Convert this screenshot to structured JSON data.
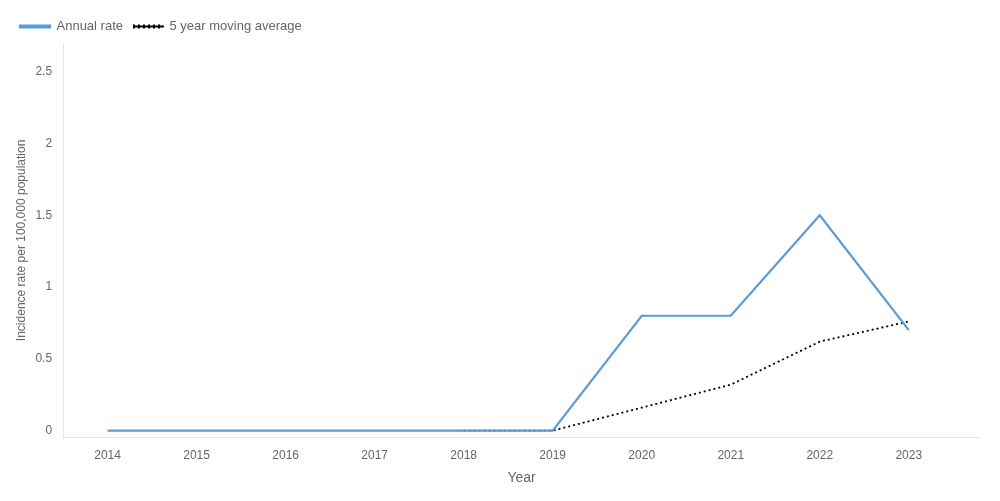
{
  "chart_data": {
    "type": "line",
    "x": [
      2014,
      2015,
      2016,
      2017,
      2018,
      2019,
      2020,
      2021,
      2022,
      2023
    ],
    "series": [
      {
        "name": "Annual rate",
        "color": "#5B9BD5",
        "line_style": "solid",
        "values": [
          0.0,
          0.0,
          0.0,
          0.0,
          0.0,
          0.0,
          0.8,
          0.8,
          1.5,
          0.7
        ]
      },
      {
        "name": "5 year moving average",
        "color": "#000000",
        "line_style": "dotted",
        "values": [
          null,
          null,
          null,
          null,
          0.0,
          0.0,
          0.16,
          0.32,
          0.62,
          0.76
        ]
      }
    ],
    "xlabel": "Year",
    "ylabel": "Incidence rate per 100,000 population",
    "xlim": [
      2013.5,
      2023.8
    ],
    "xticks": [
      2014,
      2015,
      2016,
      2017,
      2018,
      2019,
      2020,
      2021,
      2022,
      2023
    ],
    "ylim": [
      -0.05,
      2.7
    ],
    "yticks": [
      0,
      0.5,
      1,
      1.5,
      2,
      2.5
    ],
    "grid": false,
    "legend": "upper left"
  }
}
